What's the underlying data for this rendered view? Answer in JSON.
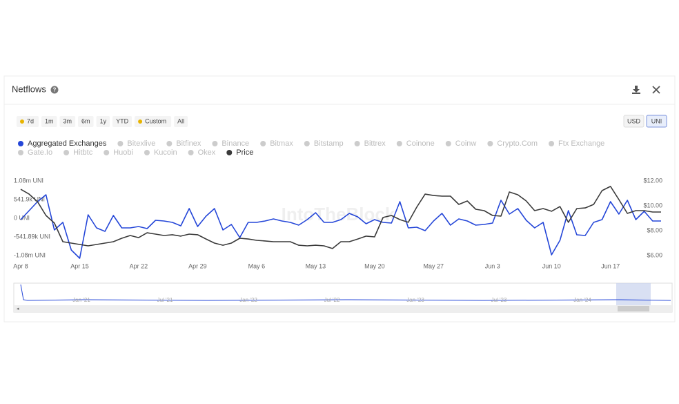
{
  "header": {
    "title": "Netflows"
  },
  "range_buttons": [
    "7d",
    "1m",
    "3m",
    "6m",
    "1y",
    "YTD",
    "Custom",
    "All"
  ],
  "unit_buttons": [
    "USD",
    "UNI"
  ],
  "watermark": "IntoTheBlock",
  "navigator_labels": [
    "Jan '21",
    "Jul '21",
    "Jan '22",
    "Jul '22",
    "Jan '23",
    "Jul '23",
    "Jan '24"
  ],
  "chart_data": {
    "type": "line",
    "categories": [
      "Apr 8",
      null,
      null,
      null,
      null,
      null,
      null,
      "Apr 15",
      null,
      null,
      null,
      null,
      null,
      null,
      "Apr 22",
      null,
      null,
      null,
      null,
      null,
      null,
      "Apr 29",
      null,
      null,
      null,
      null,
      null,
      null,
      "May 6",
      null,
      null,
      null,
      null,
      null,
      null,
      "May 13",
      null,
      null,
      null,
      null,
      null,
      null,
      "May 20",
      null,
      null,
      null,
      null,
      null,
      null,
      "May 27",
      null,
      null,
      null,
      null,
      null,
      null,
      "Jun 3",
      null,
      null,
      null,
      null,
      null,
      null,
      "Jun 10",
      null,
      null,
      null,
      null,
      null,
      null,
      "Jun 17",
      null,
      null,
      null,
      null,
      null,
      null
    ],
    "series": [
      {
        "name": "Aggregated Exchanges",
        "color": "#2446d8",
        "values": [
          -40000,
          220000,
          480000,
          680000,
          -340000,
          -120000,
          -920000,
          -1160000,
          100000,
          -280000,
          -380000,
          80000,
          -280000,
          -280000,
          -240000,
          -300000,
          -60000,
          -80000,
          -120000,
          -220000,
          280000,
          -240000,
          60000,
          280000,
          -340000,
          -180000,
          -560000,
          -120000,
          -120000,
          -80000,
          -20000,
          -80000,
          -120000,
          -200000,
          -40000,
          160000,
          -120000,
          -120000,
          -40000,
          140000,
          40000,
          -160000,
          -40000,
          -120000,
          -140000,
          480000,
          -280000,
          -260000,
          -360000,
          -80000,
          140000,
          -200000,
          -20000,
          -80000,
          -200000,
          -180000,
          -140000,
          520000,
          120000,
          280000,
          -60000,
          -280000,
          -120000,
          -1060000,
          -640000,
          220000,
          -480000,
          -500000,
          -120000,
          -40000,
          480000,
          120000,
          520000,
          -40000,
          200000,
          -80000,
          -80000
        ]
      },
      {
        "name": "Price",
        "color": "#3a3a3a",
        "axis": "y2",
        "values": [
          11.33,
          10.94,
          10.33,
          9.22,
          8.61,
          7.11,
          7.0,
          6.89,
          6.78,
          6.89,
          7.0,
          7.11,
          7.39,
          7.61,
          7.44,
          7.83,
          7.72,
          7.61,
          7.67,
          7.56,
          7.72,
          7.67,
          7.33,
          7.0,
          6.83,
          7.0,
          7.39,
          7.33,
          7.22,
          7.17,
          7.11,
          7.11,
          7.11,
          6.83,
          6.78,
          6.83,
          6.78,
          6.56,
          7.11,
          7.11,
          7.33,
          7.56,
          7.5,
          9.06,
          9.22,
          8.89,
          8.67,
          9.89,
          10.94,
          10.83,
          10.78,
          10.78,
          10.11,
          10.39,
          9.72,
          9.61,
          9.22,
          9.17,
          11.11,
          10.89,
          10.39,
          9.61,
          9.78,
          9.56,
          9.94,
          8.67,
          9.78,
          9.83,
          10.11,
          11.22,
          11.56,
          10.5,
          9.39,
          9.61,
          9.61,
          9.5,
          9.5
        ]
      }
    ],
    "inactive_series": [
      "Bitexlive",
      "Bitfinex",
      "Binance",
      "Bitmax",
      "Bitstamp",
      "Bittrex",
      "Coinone",
      "Coinw",
      "Crypto.Com",
      "Ftx Exchange",
      "Gate.Io",
      "Hitbtc",
      "Huobi",
      "Kucoin",
      "Okex"
    ],
    "ylim": [
      -1080000,
      1080000
    ],
    "yticks": [
      {
        "value": 1080000,
        "label": "1.08m UNI"
      },
      {
        "value": 541890,
        "label": "541.9k UNI"
      },
      {
        "value": 0,
        "label": "0 UNI"
      },
      {
        "value": -541890,
        "label": "-541.89k UNI"
      },
      {
        "value": -1080000,
        "label": "-1.08m UNI"
      }
    ],
    "y2lim": [
      6,
      12
    ],
    "y2ticks": [
      {
        "value": 12,
        "label": "$12.00"
      },
      {
        "value": 10,
        "label": "$10.00"
      },
      {
        "value": 8,
        "label": "$8.00"
      },
      {
        "value": 6,
        "label": "$6.00"
      }
    ]
  }
}
